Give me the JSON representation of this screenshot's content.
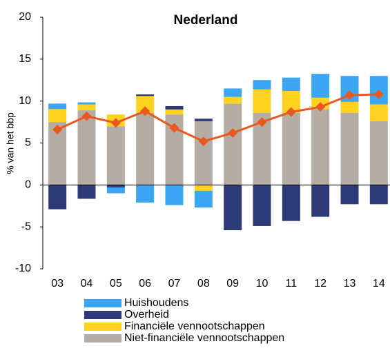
{
  "chart_data": {
    "type": "stacked-bar-line",
    "title": "Nederland",
    "y_label": "% van het bbp",
    "categories": [
      "03",
      "04",
      "05",
      "06",
      "07",
      "08",
      "09",
      "10",
      "11",
      "12",
      "13",
      "14"
    ],
    "series": [
      {
        "name": "Niet-financiële vennootschappen",
        "color": "#b5aca3",
        "values": [
          7.5,
          8.9,
          7.0,
          8.6,
          8.4,
          7.6,
          9.7,
          8.6,
          8.6,
          9.05,
          8.6,
          7.6
        ]
      },
      {
        "name": "Financiële vennootschappen",
        "color": "#ffd21f",
        "values": [
          1.55,
          0.7,
          1.4,
          2.0,
          0.6,
          -0.7,
          0.8,
          2.8,
          2.6,
          1.35,
          1.3,
          2.0
        ]
      },
      {
        "name": "Overheid",
        "color": "#2d3a78",
        "values": [
          -2.9,
          -1.65,
          -0.3,
          0.2,
          0.4,
          0.3,
          -5.4,
          -4.9,
          -4.3,
          -3.8,
          -2.3,
          -2.3
        ]
      },
      {
        "name": "Huishoudens",
        "color": "#3ba6f3",
        "values": [
          0.65,
          0.25,
          -0.7,
          -2.1,
          -2.4,
          -2.0,
          1.0,
          1.1,
          1.6,
          2.85,
          3.1,
          3.4
        ]
      }
    ],
    "line": {
      "color": "#e8581f",
      "values": [
        6.6,
        8.2,
        7.4,
        8.8,
        6.8,
        5.2,
        6.2,
        7.5,
        8.7,
        9.3,
        10.7,
        10.8
      ]
    },
    "ylim": [
      -10,
      20
    ],
    "yticks": [
      -10,
      -5,
      0,
      5,
      10,
      15,
      20
    ],
    "grid": false,
    "legend_order": [
      3,
      2,
      1,
      0
    ]
  }
}
